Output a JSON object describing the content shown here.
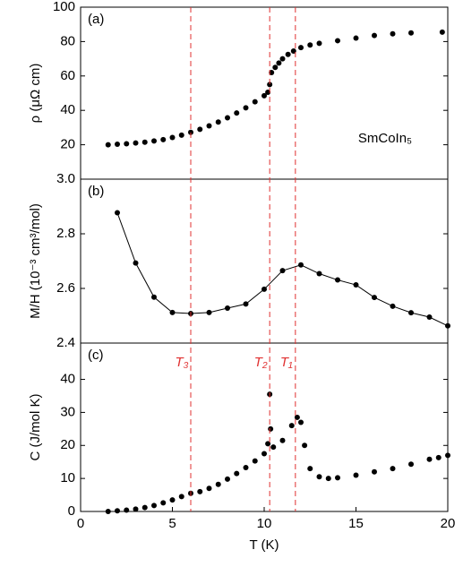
{
  "chart_data": [
    {
      "type": "scatter",
      "annotation": "(a)",
      "note": "SmCoIn₅",
      "ylabel": "ρ (μΩ cm)",
      "color": "#000000",
      "xlim": [
        0,
        20
      ],
      "ylim": [
        0,
        100
      ],
      "yticks": [
        20,
        40,
        60,
        80,
        100
      ],
      "x": [
        1.5,
        2,
        2.5,
        3,
        3.5,
        4,
        4.5,
        5,
        5.5,
        6,
        6.5,
        7,
        7.5,
        8,
        8.5,
        9,
        9.5,
        10,
        10.2,
        10.3,
        10.4,
        10.6,
        10.8,
        11,
        11.3,
        11.6,
        12,
        12.5,
        13,
        14,
        15,
        16,
        17,
        18,
        19.7
      ],
      "values": [
        20,
        20.3,
        20.6,
        21,
        21.5,
        22.2,
        23,
        24.2,
        25.6,
        27.2,
        29,
        31,
        33.2,
        35.7,
        38.5,
        41.5,
        45,
        48.5,
        50.5,
        55,
        62,
        65,
        67.5,
        70,
        72.5,
        74.5,
        76.5,
        78,
        79,
        80.5,
        82,
        83.5,
        84.5,
        85,
        85.5
      ]
    },
    {
      "type": "line",
      "annotation": "(b)",
      "ylabel": "M/H (10⁻³ cm³/mol)",
      "color": "#000000",
      "xlim": [
        0,
        20
      ],
      "ylim": [
        2.4,
        3.0
      ],
      "yticks": [
        2.4,
        2.6,
        2.8,
        {
          "value": 3,
          "label": "3.0"
        }
      ],
      "x": [
        2,
        3,
        4,
        5,
        6,
        7,
        8,
        9,
        10,
        11,
        12,
        13,
        14,
        15,
        16,
        17,
        18,
        19,
        20
      ],
      "values": [
        2.877,
        2.693,
        2.568,
        2.512,
        2.508,
        2.512,
        2.528,
        2.543,
        2.597,
        2.665,
        2.686,
        2.654,
        2.631,
        2.613,
        2.567,
        2.535,
        2.511,
        2.495,
        2.463
      ]
    },
    {
      "type": "scatter",
      "annotation": "(c)",
      "ylabel": "C (J/mol K)",
      "xlabel": "T (K)",
      "color": "#000000",
      "xlim": [
        0,
        20
      ],
      "ylim": [
        0,
        51
      ],
      "yticks": [
        0,
        10,
        20,
        30,
        40
      ],
      "xticks": [
        0,
        5,
        10,
        15,
        20
      ],
      "x": [
        1.5,
        2,
        2.5,
        3,
        3.5,
        4,
        4.5,
        5,
        5.5,
        6,
        6.5,
        7,
        7.5,
        8,
        8.5,
        9,
        9.5,
        10,
        10.2,
        10.3,
        10.35,
        10.5,
        11,
        11.5,
        11.8,
        12,
        12.2,
        12.5,
        13,
        13.5,
        14,
        15,
        16,
        17,
        18,
        19,
        19.5,
        20
      ],
      "values": [
        0,
        0.2,
        0.4,
        0.7,
        1.2,
        1.8,
        2.6,
        3.5,
        4.5,
        5.5,
        6,
        7,
        8.2,
        9.8,
        11.5,
        13.3,
        15.3,
        17.5,
        20.5,
        35.5,
        25,
        19.5,
        21.5,
        26,
        28.5,
        27,
        20,
        13,
        10.5,
        10,
        10.2,
        11,
        12,
        13,
        14.3,
        15.8,
        16.3,
        17
      ],
      "vlines": {
        "x": [
          6,
          10.3,
          11.7
        ],
        "labels": [
          "T₃",
          "T₂",
          "T₁"
        ],
        "color": "#e03030"
      }
    }
  ]
}
